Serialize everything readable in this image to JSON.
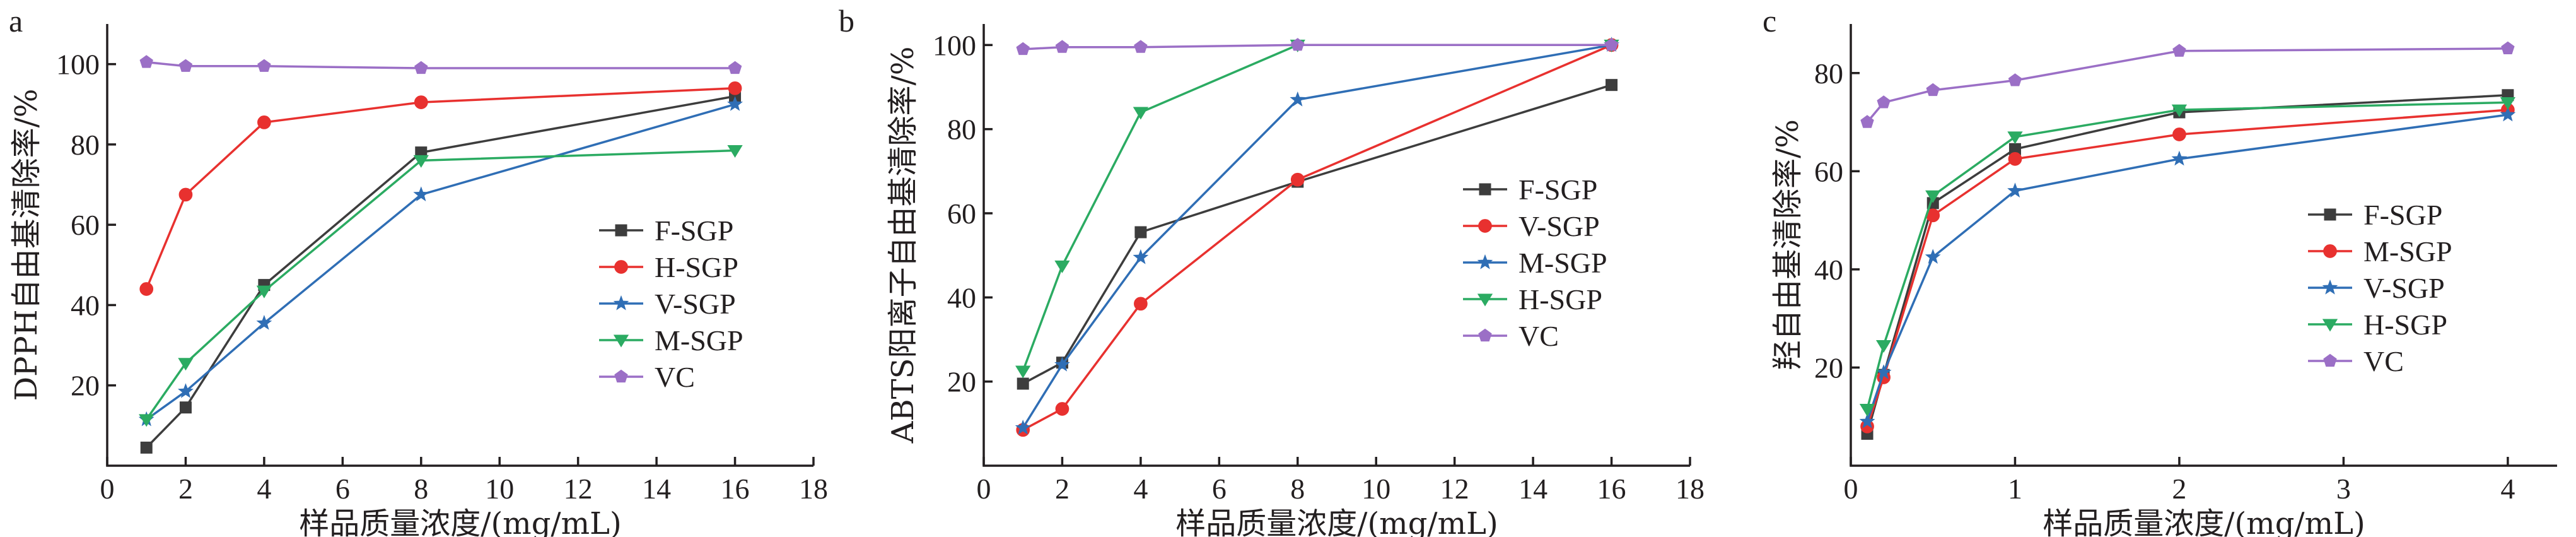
{
  "chart_data": [
    {
      "type": "line",
      "panel": "a",
      "xlabel": "样品质量浓度/(mg/mL)",
      "ylabel": "DPPH自由基清除率/%",
      "xlim": [
        0,
        18
      ],
      "ylim": [
        0,
        110
      ],
      "xticks": [
        0,
        2,
        4,
        6,
        8,
        10,
        12,
        14,
        16,
        18
      ],
      "yticks": [
        20,
        40,
        60,
        80,
        100
      ],
      "legend_position": "center-right",
      "series": [
        {
          "name": "F-SGP",
          "color": "#3d3d3d",
          "marker": "square",
          "x": [
            1,
            2,
            4,
            8,
            16
          ],
          "y": [
            4.5,
            14.5,
            45,
            78,
            92
          ]
        },
        {
          "name": "H-SGP",
          "color": "#e8312f",
          "marker": "circle",
          "x": [
            1,
            2,
            4,
            8,
            16
          ],
          "y": [
            44,
            67.5,
            85.5,
            90.5,
            94
          ]
        },
        {
          "name": "V-SGP",
          "color": "#2f6eb5",
          "marker": "star",
          "x": [
            1,
            2,
            4,
            8,
            16
          ],
          "y": [
            11.5,
            18.5,
            35.5,
            67.5,
            90
          ]
        },
        {
          "name": "M-SGP",
          "color": "#2bab62",
          "marker": "triangle-down",
          "x": [
            1,
            2,
            4,
            8,
            16
          ],
          "y": [
            11.5,
            25.5,
            43.5,
            76,
            78.5
          ]
        },
        {
          "name": "VC",
          "color": "#9b6fc6",
          "marker": "pentagon",
          "x": [
            1,
            2,
            4,
            8,
            16
          ],
          "y": [
            100.5,
            99.5,
            99.5,
            99,
            99
          ]
        }
      ]
    },
    {
      "type": "line",
      "panel": "b",
      "xlabel": "样品质量浓度/(mg/mL)",
      "ylabel": "ABTS阳离子自由基清除率/%",
      "xlim": [
        0,
        18
      ],
      "ylim": [
        0,
        105
      ],
      "xticks": [
        0,
        2,
        4,
        6,
        8,
        10,
        12,
        14,
        16,
        18
      ],
      "yticks": [
        20,
        40,
        60,
        80,
        100
      ],
      "legend_position": "center-right",
      "series": [
        {
          "name": "F-SGP",
          "color": "#3d3d3d",
          "marker": "square",
          "x": [
            1,
            2,
            4,
            8,
            16
          ],
          "y": [
            19.5,
            24.5,
            55.5,
            67.5,
            90.5
          ]
        },
        {
          "name": "V-SGP",
          "color": "#e8312f",
          "marker": "circle",
          "x": [
            1,
            2,
            4,
            8,
            16
          ],
          "y": [
            8.5,
            13.5,
            38.5,
            68,
            100
          ]
        },
        {
          "name": "M-SGP",
          "color": "#2f6eb5",
          "marker": "star",
          "x": [
            1,
            2,
            4,
            8,
            16
          ],
          "y": [
            9,
            24,
            49.5,
            87,
            100
          ]
        },
        {
          "name": "H-SGP",
          "color": "#2bab62",
          "marker": "triangle-down",
          "x": [
            1,
            2,
            4,
            8,
            16
          ],
          "y": [
            22.5,
            47.5,
            84,
            100,
            100
          ]
        },
        {
          "name": "VC",
          "color": "#9b6fc6",
          "marker": "pentagon",
          "x": [
            1,
            2,
            4,
            8,
            16
          ],
          "y": [
            99,
            99.5,
            99.5,
            100,
            100
          ]
        }
      ]
    },
    {
      "type": "line",
      "panel": "c",
      "xlabel": "样品质量浓度/(mg/mL)",
      "ylabel": "羟自由基清除率/%",
      "xlim": [
        0,
        4.3
      ],
      "ylim": [
        0,
        90
      ],
      "xticks": [
        0,
        1,
        2,
        3,
        4
      ],
      "yticks": [
        20,
        40,
        60,
        80
      ],
      "legend_position": "bottom-right",
      "series": [
        {
          "name": "F-SGP",
          "color": "#3d3d3d",
          "marker": "square",
          "x": [
            0.1,
            0.2,
            0.5,
            1,
            2,
            4
          ],
          "y": [
            6.5,
            18.5,
            53.5,
            64.5,
            72,
            75.5
          ]
        },
        {
          "name": "M-SGP",
          "color": "#e8312f",
          "marker": "circle",
          "x": [
            0.1,
            0.2,
            0.5,
            1,
            2,
            4
          ],
          "y": [
            8,
            18,
            51,
            62.5,
            67.5,
            72.5
          ]
        },
        {
          "name": "V-SGP",
          "color": "#2f6eb5",
          "marker": "star",
          "x": [
            0.1,
            0.2,
            0.5,
            1,
            2,
            4
          ],
          "y": [
            9,
            19,
            42.5,
            56,
            62.5,
            71.5
          ]
        },
        {
          "name": "H-SGP",
          "color": "#2bab62",
          "marker": "triangle-down",
          "x": [
            0.1,
            0.2,
            0.5,
            1,
            2,
            4
          ],
          "y": [
            11.5,
            24.5,
            55,
            67,
            72.5,
            74
          ]
        },
        {
          "name": "VC",
          "color": "#9b6fc6",
          "marker": "pentagon",
          "x": [
            0.1,
            0.2,
            0.5,
            1,
            2,
            4
          ],
          "y": [
            70,
            74,
            76.5,
            78.5,
            84.5,
            85
          ]
        }
      ]
    }
  ]
}
